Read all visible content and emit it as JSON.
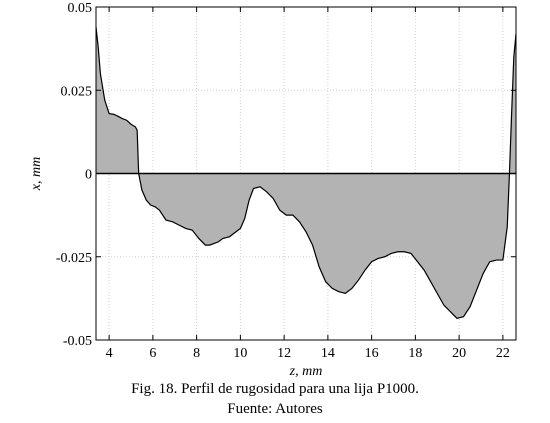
{
  "chart_data": {
    "type": "area",
    "title": "",
    "xlabel": "z, mm",
    "ylabel": "x, mm",
    "xlim": [
      3.4,
      22.6
    ],
    "ylim": [
      -0.05,
      0.05
    ],
    "x_ticks": [
      4,
      6,
      8,
      10,
      12,
      14,
      16,
      18,
      20,
      22
    ],
    "y_ticks": [
      -0.05,
      -0.025,
      0,
      0.025,
      0.05
    ],
    "y_tick_labels": [
      "-0.05",
      "-0.025",
      "0",
      "0.025",
      "0.05"
    ],
    "grid": true,
    "fill_color": "#b3b3b3",
    "line_color": "#000000",
    "series": [
      {
        "x": [
          3.4,
          3.5,
          3.6,
          3.8,
          4.0,
          4.2,
          4.4,
          4.6,
          4.8,
          5.0,
          5.2,
          5.28,
          5.35,
          5.5,
          5.7,
          5.9,
          6.1,
          6.3,
          6.6,
          6.9,
          7.2,
          7.5,
          7.8,
          8.1,
          8.4,
          8.6,
          8.8,
          9.0,
          9.2,
          9.5,
          9.8,
          10.0,
          10.2,
          10.4,
          10.6,
          10.9,
          11.2,
          11.5,
          11.8,
          12.1,
          12.4,
          12.7,
          13.0,
          13.3,
          13.6,
          13.9,
          14.2,
          14.5,
          14.8,
          15.1,
          15.4,
          15.7,
          16.0,
          16.3,
          16.6,
          16.9,
          17.2,
          17.5,
          17.8,
          18.1,
          18.4,
          18.7,
          19.0,
          19.3,
          19.6,
          19.9,
          20.2,
          20.5,
          20.8,
          21.1,
          21.4,
          21.7,
          22.0,
          22.2,
          22.3,
          22.4,
          22.5,
          22.6
        ],
        "y": [
          0.044,
          0.038,
          0.03,
          0.022,
          0.018,
          0.0178,
          0.0172,
          0.0165,
          0.016,
          0.0148,
          0.014,
          0.013,
          0.0,
          -0.005,
          -0.008,
          -0.0095,
          -0.01,
          -0.011,
          -0.014,
          -0.0145,
          -0.0155,
          -0.0165,
          -0.017,
          -0.0195,
          -0.0215,
          -0.0215,
          -0.021,
          -0.0205,
          -0.0195,
          -0.019,
          -0.0175,
          -0.0165,
          -0.0135,
          -0.008,
          -0.0045,
          -0.004,
          -0.0055,
          -0.0075,
          -0.011,
          -0.0125,
          -0.0125,
          -0.0145,
          -0.0175,
          -0.0215,
          -0.028,
          -0.0325,
          -0.0345,
          -0.0355,
          -0.036,
          -0.0345,
          -0.032,
          -0.029,
          -0.0265,
          -0.0255,
          -0.025,
          -0.024,
          -0.0235,
          -0.0235,
          -0.024,
          -0.0265,
          -0.029,
          -0.0325,
          -0.036,
          -0.0395,
          -0.0415,
          -0.0435,
          -0.043,
          -0.04,
          -0.035,
          -0.03,
          -0.0265,
          -0.026,
          -0.026,
          -0.016,
          0.0,
          0.018,
          0.035,
          0.042
        ]
      }
    ]
  },
  "caption": {
    "line1": "Fig. 18. Perfil de rugosidad para una lija P1000.",
    "line2": "Fuente: Autores"
  }
}
